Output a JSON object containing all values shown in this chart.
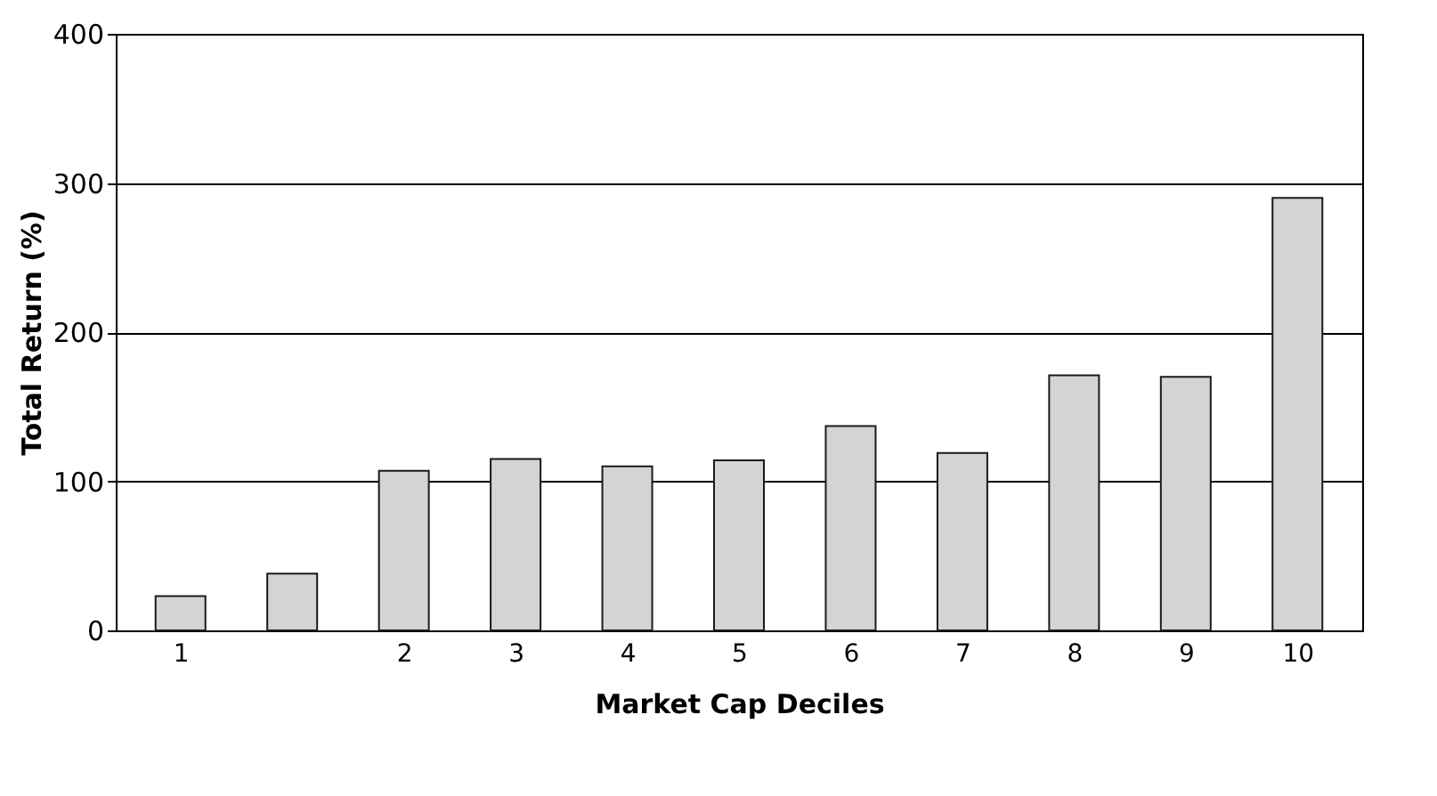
{
  "chart_data": {
    "type": "bar",
    "xlabel": "Market Cap Deciles",
    "ylabel": "Total Return (%)",
    "categories": [
      "1",
      null,
      "2",
      "3",
      "4",
      "5",
      "6",
      "7",
      "8",
      "9",
      "10"
    ],
    "values": [
      23,
      38,
      107,
      115,
      110,
      114,
      137,
      119,
      171,
      170,
      290
    ],
    "color": "#d3d4d6",
    "ylim": [
      0,
      400
    ],
    "yticks": [
      0,
      100,
      200,
      300,
      400
    ],
    "grid": "y"
  }
}
